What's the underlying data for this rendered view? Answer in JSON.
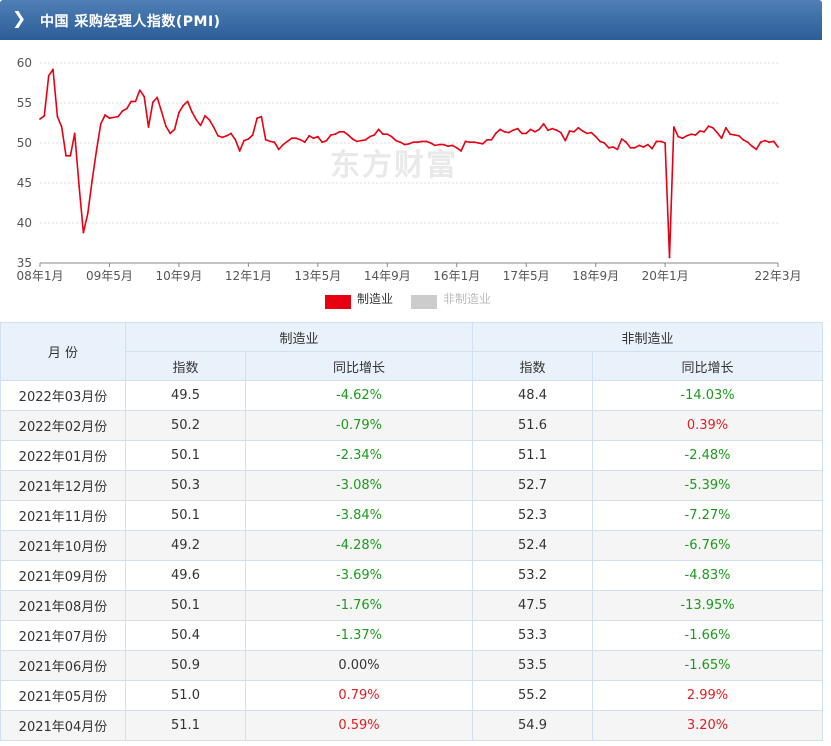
{
  "header": {
    "title": "中国 采购经理人指数(PMI)"
  },
  "watermark": "东方财富",
  "colors": {
    "manufacturing": "#e60012",
    "non_manufacturing": "#cccccc",
    "header": "#3a6aa5",
    "positive": "#e02020",
    "negative": "#1c9a1c"
  },
  "chart_data": {
    "type": "line",
    "x_ticks": [
      "08年1月",
      "09年5月",
      "10年9月",
      "12年1月",
      "13年5月",
      "14年9月",
      "16年1月",
      "17年5月",
      "18年9月",
      "20年1月",
      "22年3月"
    ],
    "y_ticks": [
      60,
      55,
      50,
      45,
      40,
      35
    ],
    "ylim": [
      35,
      60
    ],
    "legend_position": "bottom",
    "grid": true,
    "series": [
      {
        "name": "制造业",
        "color": "#e60012",
        "visible": true,
        "points": [
          [
            "2008-01",
            53.0
          ],
          [
            "2008-02",
            53.4
          ],
          [
            "2008-03",
            58.4
          ],
          [
            "2008-04",
            59.2
          ],
          [
            "2008-05",
            53.3
          ],
          [
            "2008-06",
            52.0
          ],
          [
            "2008-07",
            48.4
          ],
          [
            "2008-08",
            48.4
          ],
          [
            "2008-09",
            51.2
          ],
          [
            "2008-10",
            44.6
          ],
          [
            "2008-11",
            38.8
          ],
          [
            "2008-12",
            41.2
          ],
          [
            "2009-01",
            45.3
          ],
          [
            "2009-02",
            49.0
          ],
          [
            "2009-03",
            52.4
          ],
          [
            "2009-04",
            53.5
          ],
          [
            "2009-05",
            53.1
          ],
          [
            "2009-06",
            53.2
          ],
          [
            "2009-07",
            53.3
          ],
          [
            "2009-08",
            54.0
          ],
          [
            "2009-09",
            54.3
          ],
          [
            "2009-10",
            55.2
          ],
          [
            "2009-11",
            55.2
          ],
          [
            "2009-12",
            56.6
          ],
          [
            "2010-01",
            55.8
          ],
          [
            "2010-02",
            52.0
          ],
          [
            "2010-03",
            55.1
          ],
          [
            "2010-04",
            55.7
          ],
          [
            "2010-05",
            53.9
          ],
          [
            "2010-06",
            52.1
          ],
          [
            "2010-07",
            51.2
          ],
          [
            "2010-08",
            51.7
          ],
          [
            "2010-09",
            53.8
          ],
          [
            "2010-10",
            54.7
          ],
          [
            "2010-11",
            55.2
          ],
          [
            "2010-12",
            53.9
          ],
          [
            "2011-01",
            52.9
          ],
          [
            "2011-02",
            52.2
          ],
          [
            "2011-03",
            53.4
          ],
          [
            "2011-04",
            52.9
          ],
          [
            "2011-05",
            52.0
          ],
          [
            "2011-06",
            50.9
          ],
          [
            "2011-07",
            50.7
          ],
          [
            "2011-08",
            50.9
          ],
          [
            "2011-09",
            51.2
          ],
          [
            "2011-10",
            50.4
          ],
          [
            "2011-11",
            49.0
          ],
          [
            "2011-12",
            50.3
          ],
          [
            "2012-01",
            50.5
          ],
          [
            "2012-02",
            51.0
          ],
          [
            "2012-03",
            53.1
          ],
          [
            "2012-04",
            53.3
          ],
          [
            "2012-05",
            50.4
          ],
          [
            "2012-06",
            50.2
          ],
          [
            "2012-07",
            50.1
          ],
          [
            "2012-08",
            49.2
          ],
          [
            "2012-09",
            49.8
          ],
          [
            "2012-10",
            50.2
          ],
          [
            "2012-11",
            50.6
          ],
          [
            "2012-12",
            50.6
          ],
          [
            "2013-01",
            50.4
          ],
          [
            "2013-02",
            50.1
          ],
          [
            "2013-03",
            50.9
          ],
          [
            "2013-04",
            50.6
          ],
          [
            "2013-05",
            50.8
          ],
          [
            "2013-06",
            50.1
          ],
          [
            "2013-07",
            50.3
          ],
          [
            "2013-08",
            51.0
          ],
          [
            "2013-09",
            51.1
          ],
          [
            "2013-10",
            51.4
          ],
          [
            "2013-11",
            51.4
          ],
          [
            "2013-12",
            51.0
          ],
          [
            "2014-01",
            50.5
          ],
          [
            "2014-02",
            50.2
          ],
          [
            "2014-03",
            50.3
          ],
          [
            "2014-04",
            50.4
          ],
          [
            "2014-05",
            50.8
          ],
          [
            "2014-06",
            51.0
          ],
          [
            "2014-07",
            51.7
          ],
          [
            "2014-08",
            51.1
          ],
          [
            "2014-09",
            51.1
          ],
          [
            "2014-10",
            50.8
          ],
          [
            "2014-11",
            50.3
          ],
          [
            "2014-12",
            50.1
          ],
          [
            "2015-01",
            49.8
          ],
          [
            "2015-02",
            49.9
          ],
          [
            "2015-03",
            50.1
          ],
          [
            "2015-04",
            50.1
          ],
          [
            "2015-05",
            50.2
          ],
          [
            "2015-06",
            50.2
          ],
          [
            "2015-07",
            50.0
          ],
          [
            "2015-08",
            49.7
          ],
          [
            "2015-09",
            49.8
          ],
          [
            "2015-10",
            49.8
          ],
          [
            "2015-11",
            49.6
          ],
          [
            "2015-12",
            49.7
          ],
          [
            "2016-01",
            49.4
          ],
          [
            "2016-02",
            49.0
          ],
          [
            "2016-03",
            50.2
          ],
          [
            "2016-04",
            50.1
          ],
          [
            "2016-05",
            50.1
          ],
          [
            "2016-06",
            50.0
          ],
          [
            "2016-07",
            49.9
          ],
          [
            "2016-08",
            50.4
          ],
          [
            "2016-09",
            50.4
          ],
          [
            "2016-10",
            51.2
          ],
          [
            "2016-11",
            51.7
          ],
          [
            "2016-12",
            51.4
          ],
          [
            "2017-01",
            51.3
          ],
          [
            "2017-02",
            51.6
          ],
          [
            "2017-03",
            51.8
          ],
          [
            "2017-04",
            51.2
          ],
          [
            "2017-05",
            51.2
          ],
          [
            "2017-06",
            51.7
          ],
          [
            "2017-07",
            51.4
          ],
          [
            "2017-08",
            51.7
          ],
          [
            "2017-09",
            52.4
          ],
          [
            "2017-10",
            51.6
          ],
          [
            "2017-11",
            51.8
          ],
          [
            "2017-12",
            51.6
          ],
          [
            "2018-01",
            51.3
          ],
          [
            "2018-02",
            50.3
          ],
          [
            "2018-03",
            51.5
          ],
          [
            "2018-04",
            51.4
          ],
          [
            "2018-05",
            51.9
          ],
          [
            "2018-06",
            51.5
          ],
          [
            "2018-07",
            51.2
          ],
          [
            "2018-08",
            51.3
          ],
          [
            "2018-09",
            50.8
          ],
          [
            "2018-10",
            50.2
          ],
          [
            "2018-11",
            50.0
          ],
          [
            "2018-12",
            49.4
          ],
          [
            "2019-01",
            49.5
          ],
          [
            "2019-02",
            49.2
          ],
          [
            "2019-03",
            50.5
          ],
          [
            "2019-04",
            50.1
          ],
          [
            "2019-05",
            49.4
          ],
          [
            "2019-06",
            49.4
          ],
          [
            "2019-07",
            49.7
          ],
          [
            "2019-08",
            49.5
          ],
          [
            "2019-09",
            49.8
          ],
          [
            "2019-10",
            49.3
          ],
          [
            "2019-11",
            50.2
          ],
          [
            "2019-12",
            50.2
          ],
          [
            "2020-01",
            50.0
          ],
          [
            "2020-02",
            35.7
          ],
          [
            "2020-03",
            52.0
          ],
          [
            "2020-04",
            50.8
          ],
          [
            "2020-05",
            50.6
          ],
          [
            "2020-06",
            50.9
          ],
          [
            "2020-07",
            51.1
          ],
          [
            "2020-08",
            51.0
          ],
          [
            "2020-09",
            51.5
          ],
          [
            "2020-10",
            51.4
          ],
          [
            "2020-11",
            52.1
          ],
          [
            "2020-12",
            51.9
          ],
          [
            "2021-01",
            51.3
          ],
          [
            "2021-02",
            50.6
          ],
          [
            "2021-03",
            51.9
          ],
          [
            "2021-04",
            51.1
          ],
          [
            "2021-05",
            51.0
          ],
          [
            "2021-06",
            50.9
          ],
          [
            "2021-07",
            50.4
          ],
          [
            "2021-08",
            50.1
          ],
          [
            "2021-09",
            49.6
          ],
          [
            "2021-10",
            49.2
          ],
          [
            "2021-11",
            50.1
          ],
          [
            "2021-12",
            50.3
          ],
          [
            "2022-01",
            50.1
          ],
          [
            "2022-02",
            50.2
          ],
          [
            "2022-03",
            49.5
          ]
        ]
      },
      {
        "name": "非制造业",
        "color": "#cccccc",
        "visible": false
      }
    ]
  },
  "table": {
    "col_month": "月  份",
    "group_manufacturing": "制造业",
    "group_non_manufacturing": "非制造业",
    "sub_index": "指数",
    "sub_yoy": "同比增长",
    "rows": [
      {
        "month": "2022年03月份",
        "m_index": "49.5",
        "m_yoy": "-4.62%",
        "m_yoy_sign": "neg",
        "n_index": "48.4",
        "n_yoy": "-14.03%",
        "n_yoy_sign": "neg"
      },
      {
        "month": "2022年02月份",
        "m_index": "50.2",
        "m_yoy": "-0.79%",
        "m_yoy_sign": "neg",
        "n_index": "51.6",
        "n_yoy": "0.39%",
        "n_yoy_sign": "pos"
      },
      {
        "month": "2022年01月份",
        "m_index": "50.1",
        "m_yoy": "-2.34%",
        "m_yoy_sign": "neg",
        "n_index": "51.1",
        "n_yoy": "-2.48%",
        "n_yoy_sign": "neg"
      },
      {
        "month": "2021年12月份",
        "m_index": "50.3",
        "m_yoy": "-3.08%",
        "m_yoy_sign": "neg",
        "n_index": "52.7",
        "n_yoy": "-5.39%",
        "n_yoy_sign": "neg"
      },
      {
        "month": "2021年11月份",
        "m_index": "50.1",
        "m_yoy": "-3.84%",
        "m_yoy_sign": "neg",
        "n_index": "52.3",
        "n_yoy": "-7.27%",
        "n_yoy_sign": "neg"
      },
      {
        "month": "2021年10月份",
        "m_index": "49.2",
        "m_yoy": "-4.28%",
        "m_yoy_sign": "neg",
        "n_index": "52.4",
        "n_yoy": "-6.76%",
        "n_yoy_sign": "neg"
      },
      {
        "month": "2021年09月份",
        "m_index": "49.6",
        "m_yoy": "-3.69%",
        "m_yoy_sign": "neg",
        "n_index": "53.2",
        "n_yoy": "-4.83%",
        "n_yoy_sign": "neg"
      },
      {
        "month": "2021年08月份",
        "m_index": "50.1",
        "m_yoy": "-1.76%",
        "m_yoy_sign": "neg",
        "n_index": "47.5",
        "n_yoy": "-13.95%",
        "n_yoy_sign": "neg"
      },
      {
        "month": "2021年07月份",
        "m_index": "50.4",
        "m_yoy": "-1.37%",
        "m_yoy_sign": "neg",
        "n_index": "53.3",
        "n_yoy": "-1.66%",
        "n_yoy_sign": "neg"
      },
      {
        "month": "2021年06月份",
        "m_index": "50.9",
        "m_yoy": "0.00%",
        "m_yoy_sign": "zero",
        "n_index": "53.5",
        "n_yoy": "-1.65%",
        "n_yoy_sign": "neg"
      },
      {
        "month": "2021年05月份",
        "m_index": "51.0",
        "m_yoy": "0.79%",
        "m_yoy_sign": "pos",
        "n_index": "55.2",
        "n_yoy": "2.99%",
        "n_yoy_sign": "pos"
      },
      {
        "month": "2021年04月份",
        "m_index": "51.1",
        "m_yoy": "0.59%",
        "m_yoy_sign": "pos",
        "n_index": "54.9",
        "n_yoy": "3.20%",
        "n_yoy_sign": "pos"
      }
    ]
  }
}
